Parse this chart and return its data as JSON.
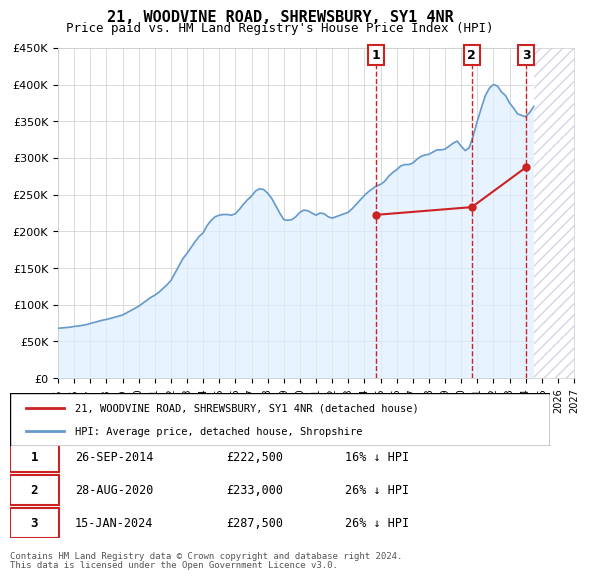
{
  "title": "21, WOODVINE ROAD, SHREWSBURY, SY1 4NR",
  "subtitle": "Price paid vs. HM Land Registry's House Price Index (HPI)",
  "hpi_label": "HPI: Average price, detached house, Shropshire",
  "property_label": "21, WOODVINE ROAD, SHREWSBURY, SY1 4NR (detached house)",
  "footer1": "Contains HM Land Registry data © Crown copyright and database right 2024.",
  "footer2": "This data is licensed under the Open Government Licence v3.0.",
  "ylim": [
    0,
    450000
  ],
  "yticks": [
    0,
    50000,
    100000,
    150000,
    200000,
    250000,
    300000,
    350000,
    400000,
    450000
  ],
  "ytick_labels": [
    "£0",
    "£50K",
    "£100K",
    "£150K",
    "£200K",
    "£250K",
    "£300K",
    "£350K",
    "£400K",
    "£450K"
  ],
  "x_start": 1995,
  "x_end": 2027,
  "xticks": [
    1995,
    1996,
    1997,
    1998,
    1999,
    2000,
    2001,
    2002,
    2003,
    2004,
    2005,
    2006,
    2007,
    2008,
    2009,
    2010,
    2011,
    2012,
    2013,
    2014,
    2015,
    2016,
    2017,
    2018,
    2019,
    2020,
    2021,
    2022,
    2023,
    2024,
    2025,
    2026,
    2027
  ],
  "sales": [
    {
      "date_num": 2014.74,
      "price": 222500,
      "label": "1"
    },
    {
      "date_num": 2020.66,
      "price": 233000,
      "label": "2"
    },
    {
      "date_num": 2024.04,
      "price": 287500,
      "label": "3"
    }
  ],
  "sales_table": [
    {
      "label": "1",
      "date": "26-SEP-2014",
      "price": "£222,500",
      "hpi": "16% ↓ HPI"
    },
    {
      "label": "2",
      "date": "28-AUG-2020",
      "price": "£233,000",
      "hpi": "26% ↓ HPI"
    },
    {
      "label": "3",
      "date": "15-JAN-2024",
      "price": "£287,500",
      "hpi": "26% ↓ HPI"
    }
  ],
  "hpi_color": "#6699cc",
  "sale_line_color": "#cc2222",
  "dashed_line_color": "#cc2222",
  "shaded_region_color": "#ddeeff",
  "hatch_color": "#aaaacc",
  "label_box_color": "#ffffff",
  "label_box_edge": "#cc2222",
  "hpi_data": {
    "years": [
      1995.0,
      1995.25,
      1995.5,
      1995.75,
      1996.0,
      1996.25,
      1996.5,
      1996.75,
      1997.0,
      1997.25,
      1997.5,
      1997.75,
      1998.0,
      1998.25,
      1998.5,
      1998.75,
      1999.0,
      1999.25,
      1999.5,
      1999.75,
      2000.0,
      2000.25,
      2000.5,
      2000.75,
      2001.0,
      2001.25,
      2001.5,
      2001.75,
      2002.0,
      2002.25,
      2002.5,
      2002.75,
      2003.0,
      2003.25,
      2003.5,
      2003.75,
      2004.0,
      2004.25,
      2004.5,
      2004.75,
      2005.0,
      2005.25,
      2005.5,
      2005.75,
      2006.0,
      2006.25,
      2006.5,
      2006.75,
      2007.0,
      2007.25,
      2007.5,
      2007.75,
      2008.0,
      2008.25,
      2008.5,
      2008.75,
      2009.0,
      2009.25,
      2009.5,
      2009.75,
      2010.0,
      2010.25,
      2010.5,
      2010.75,
      2011.0,
      2011.25,
      2011.5,
      2011.75,
      2012.0,
      2012.25,
      2012.5,
      2012.75,
      2013.0,
      2013.25,
      2013.5,
      2013.75,
      2014.0,
      2014.25,
      2014.5,
      2014.75,
      2015.0,
      2015.25,
      2015.5,
      2015.75,
      2016.0,
      2016.25,
      2016.5,
      2016.75,
      2017.0,
      2017.25,
      2017.5,
      2017.75,
      2018.0,
      2018.25,
      2018.5,
      2018.75,
      2019.0,
      2019.25,
      2019.5,
      2019.75,
      2020.0,
      2020.25,
      2020.5,
      2020.75,
      2021.0,
      2021.25,
      2021.5,
      2021.75,
      2022.0,
      2022.25,
      2022.5,
      2022.75,
      2023.0,
      2023.25,
      2023.5,
      2023.75,
      2024.0,
      2024.25,
      2024.5
    ],
    "values": [
      68000,
      68500,
      69000,
      69500,
      70500,
      71000,
      72000,
      73000,
      74500,
      76000,
      77500,
      79000,
      80000,
      81500,
      83000,
      84500,
      86000,
      89000,
      92000,
      95000,
      98000,
      102000,
      106000,
      110000,
      113000,
      117000,
      122000,
      127000,
      133000,
      143000,
      153000,
      163000,
      170000,
      178000,
      186000,
      193000,
      198000,
      208000,
      215000,
      220000,
      222000,
      223000,
      223000,
      222000,
      224000,
      230000,
      237000,
      243000,
      248000,
      255000,
      258000,
      257000,
      252000,
      245000,
      235000,
      225000,
      216000,
      215000,
      216000,
      220000,
      226000,
      229000,
      228000,
      225000,
      222000,
      225000,
      224000,
      220000,
      218000,
      220000,
      222000,
      224000,
      226000,
      231000,
      237000,
      243000,
      249000,
      254000,
      258000,
      262000,
      264000,
      268000,
      275000,
      280000,
      284000,
      289000,
      291000,
      291000,
      293000,
      298000,
      302000,
      304000,
      305000,
      308000,
      311000,
      311000,
      312000,
      316000,
      320000,
      323000,
      316000,
      310000,
      314000,
      330000,
      350000,
      368000,
      385000,
      395000,
      400000,
      398000,
      390000,
      385000,
      375000,
      368000,
      360000,
      358000,
      356000,
      362000,
      370000
    ]
  }
}
